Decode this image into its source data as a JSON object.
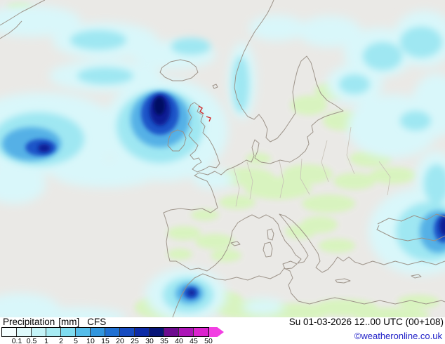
{
  "footer": {
    "parameter": "Precipitation",
    "unit": "[mm]",
    "model": "CFS",
    "valid_datetime": "Su 01-03-2026 12..00 UTC (00+108)",
    "copyright": "©weatheronline.co.uk"
  },
  "legend": {
    "unit": "mm",
    "labels": [
      "0.1",
      "0.5",
      "1",
      "2",
      "5",
      "10",
      "15",
      "20",
      "25",
      "30",
      "35",
      "40",
      "45",
      "50"
    ],
    "colors": [
      "#f4feff",
      "#def9fb",
      "#c4f3f7",
      "#a7ebf3",
      "#7fdcf0",
      "#55bdea",
      "#3296de",
      "#2070d2",
      "#164bc0",
      "#0d2ba6",
      "#071477",
      "#6d0b8f",
      "#ac14b7",
      "#db22ce"
    ],
    "arrow_color": "#f23fe2"
  },
  "map_colors": {
    "background": "#eae9e6",
    "coastline": "#9a9086",
    "border": "#c7c1b7",
    "green_light_precip": "#d8f4bd",
    "light_cyan": "#d9f7fa",
    "cyan": "#9fe7f2",
    "blue": "#55b0e6",
    "deep_blue": "#1c55c8",
    "navy": "#0a1c94",
    "darkest": "#051064",
    "front_marks": "#d22828"
  }
}
